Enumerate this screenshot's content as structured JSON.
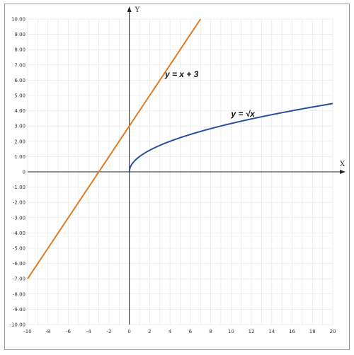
{
  "chart_data": {
    "type": "line",
    "xlabel": "X",
    "ylabel": "Y",
    "xlim": [
      -10,
      20
    ],
    "ylim": [
      -10,
      10
    ],
    "x_ticks": [
      -10,
      -8,
      -6,
      -4,
      -2,
      0,
      2,
      4,
      6,
      8,
      10,
      12,
      14,
      16,
      18,
      20
    ],
    "x_tick_labels": [
      "-10",
      "-8",
      "-6",
      "-4",
      "-2",
      "0",
      "2",
      "4",
      "6",
      "8",
      "10",
      "12",
      "14",
      "16",
      "18",
      "20"
    ],
    "y_ticks": [
      10,
      9,
      8,
      7,
      6,
      5,
      4,
      3,
      2,
      1,
      0,
      -1,
      -2,
      -3,
      -4,
      -5,
      -6,
      -7,
      -8,
      -9,
      -10
    ],
    "y_tick_labels": [
      "10.00",
      "9.00",
      "8.00",
      "7.00",
      "6.00",
      "5.00",
      "4.00",
      "3.00",
      "2.00",
      "1.00",
      "0",
      "-1.00",
      "-2.00",
      "-3.00",
      "-4.00",
      "-5.00",
      "-6.00",
      "-7.00",
      "-8.00",
      "-9.00",
      "-10.00"
    ],
    "grid": true,
    "series": [
      {
        "name": "y = x + 3",
        "color": "#e07b24",
        "x": [
          -10,
          -8,
          -6,
          -4,
          -2,
          0,
          2,
          4,
          6,
          7
        ],
        "y": [
          -7,
          -5,
          -3,
          -1,
          1,
          3,
          5,
          7,
          9,
          10
        ]
      },
      {
        "name": "y = √x",
        "color": "#2b4f9e",
        "x": [
          0,
          0.05,
          0.25,
          0.5,
          1,
          2,
          3,
          4,
          6,
          8,
          10,
          12,
          14,
          16,
          18,
          20
        ],
        "y": [
          0,
          0.22,
          0.5,
          0.71,
          1,
          1.41,
          1.73,
          2,
          2.45,
          2.83,
          3.16,
          3.46,
          3.74,
          4,
          4.24,
          4.47
        ]
      }
    ],
    "annotations": [
      {
        "text": "y = x + 3",
        "x": 3.5,
        "y": 6.2
      },
      {
        "text": "y = √x",
        "x": 10,
        "y": 3.6
      }
    ]
  }
}
